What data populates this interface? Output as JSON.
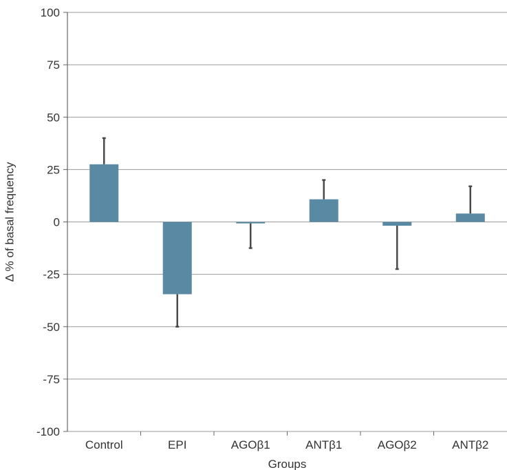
{
  "chart_data": {
    "type": "bar",
    "title": "",
    "xlabel": "Groups",
    "ylabel": "Δ % of basal frequency",
    "ylim": [
      -100,
      100
    ],
    "yticks": [
      100,
      75,
      50,
      25,
      0,
      -25,
      -50,
      -75,
      -100
    ],
    "ytick_labels": [
      "100",
      "75",
      "50",
      "25",
      "0",
      "-25",
      "-50",
      "-75",
      "-100"
    ],
    "categories": [
      "Control",
      "EPI",
      "AGOβ1",
      "ANTβ1",
      "AGOβ2",
      "ANTβ2"
    ],
    "values": [
      27.5,
      -34.5,
      -0.7,
      10.8,
      -1.8,
      4.0
    ],
    "error_ends": [
      40.0,
      -50.0,
      -12.5,
      20.0,
      -22.5,
      17.0
    ],
    "grid": true,
    "colors": {
      "bar": "#5a8aa3",
      "error_bar": "#4a4a4a",
      "grid": "#999999",
      "axis": "#666666"
    }
  }
}
